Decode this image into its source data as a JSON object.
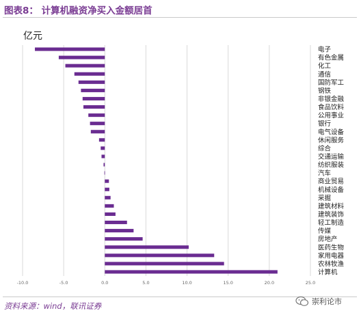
{
  "figure": {
    "title": "图表8：  计算机融资净买入金额居首",
    "source": "资料来源：wind，联讯证券",
    "watermark": "崇利论市"
  },
  "colors": {
    "bar": "#6a2c91",
    "accent": "#7a3c93",
    "grid": "#d9d9d9"
  },
  "chart_data": {
    "type": "bar",
    "orientation": "horizontal",
    "unit_label": "亿元",
    "categories": [
      "电子",
      "有色金属",
      "化工",
      "通信",
      "国防军工",
      "钢铁",
      "非银金融",
      "食品饮料",
      "公用事业",
      "银行",
      "电气设备",
      "休闲服务",
      "综合",
      "交通运输",
      "纺织服装",
      "汽车",
      "商业贸易",
      "机械设备",
      "采掘",
      "建筑材料",
      "建筑装饰",
      "轻工制造",
      "传媒",
      "房地产",
      "医药生物",
      "家用电器",
      "农林牧渔",
      "计算机"
    ],
    "values": [
      -8.5,
      -5.6,
      -4.8,
      -3.7,
      -3.2,
      -2.9,
      -2.7,
      -2.6,
      -2.0,
      -1.8,
      -1.7,
      -0.7,
      -0.5,
      -0.4,
      -0.15,
      -0.05,
      0.5,
      0.55,
      0.7,
      1.1,
      1.3,
      2.7,
      3.5,
      4.6,
      10.2,
      13.3,
      14.5,
      21.0
    ],
    "xlim": [
      -10,
      25
    ],
    "xticks": [
      -10,
      -5,
      0,
      5,
      10,
      15,
      20,
      25
    ],
    "xtick_labels": [
      "-10.0",
      "-5.0",
      "0.0",
      "5.0",
      "10.0",
      "15.0",
      "20.0",
      "25.0"
    ],
    "grid": true,
    "legend": "none"
  }
}
